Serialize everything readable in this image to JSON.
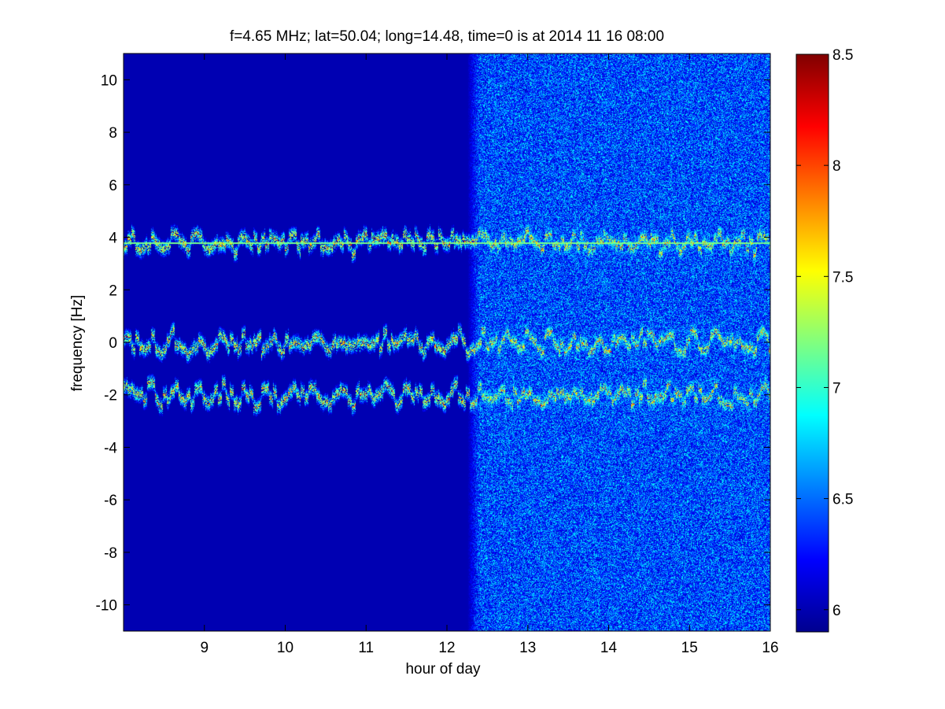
{
  "chart_data": {
    "type": "heatmap",
    "title": "f=4.65 MHz;  lat=50.04; long=14.48, time=0 is at 2014 11 16 08:00",
    "xlabel": "hour of day",
    "ylabel": "frequency [Hz]",
    "xlim": [
      8,
      16
    ],
    "ylim": [
      -11,
      11
    ],
    "x_ticks": [
      "9",
      "10",
      "11",
      "12",
      "13",
      "14",
      "15",
      "16"
    ],
    "y_ticks": [
      "-10",
      "-8",
      "-6",
      "-4",
      "-2",
      "0",
      "2",
      "4",
      "6",
      "8",
      "10"
    ],
    "colormap": "jet",
    "clim": [
      5.9,
      8.5
    ],
    "colorbar_ticks": [
      "6",
      "6.5",
      "7",
      "7.5",
      "8",
      "8.5"
    ],
    "background_level": 5.9,
    "noise_onset_hour": 12.25,
    "traces": [
      {
        "center_hz": 3.8,
        "steady_line": true,
        "peak_level": 8.0
      },
      {
        "center_hz": 0.0,
        "steady_line": false,
        "peak_level": 8.0
      },
      {
        "center_hz": -2.0,
        "steady_line": false,
        "peak_level": 8.0
      }
    ],
    "grid": false
  }
}
